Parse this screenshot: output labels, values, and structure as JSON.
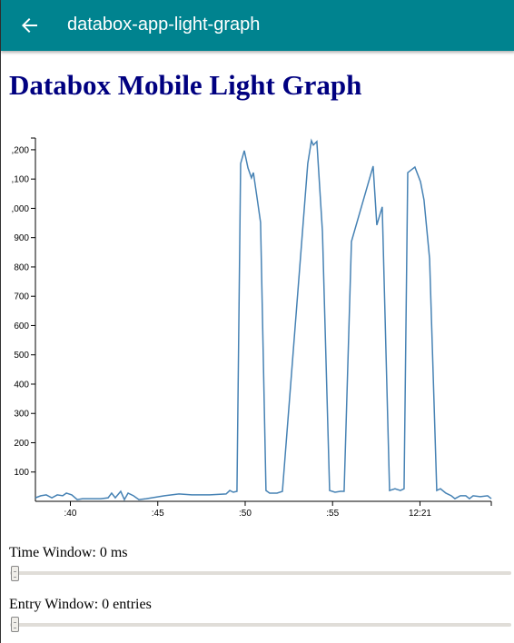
{
  "app_bar": {
    "title": "databox-app-light-graph"
  },
  "heading": "Databox Mobile Light Graph",
  "chart_data": {
    "type": "line",
    "x": [
      38.0,
      38.31,
      38.62,
      38.94,
      39.25,
      39.56,
      39.77,
      40.08,
      40.39,
      40.7,
      41.22,
      41.74,
      42.16,
      42.36,
      42.57,
      42.88,
      43.09,
      43.3,
      43.61,
      43.92,
      44.34,
      45.38,
      46.21,
      46.94,
      47.45,
      47.97,
      48.91,
      49.12,
      49.32,
      49.53,
      49.74,
      49.95,
      50.16,
      50.36,
      50.47,
      50.68,
      50.88,
      51.19,
      51.4,
      51.82,
      52.13,
      53.58,
      53.79,
      53.9,
      54.1,
      54.42,
      54.83,
      55.14,
      55.45,
      55.66,
      56.08,
      57.32,
      57.53,
      57.84,
      58.26,
      58.57,
      58.88,
      59.09,
      59.3,
      59.71,
      60.03,
      60.23,
      60.55,
      60.96,
      61.17,
      61.48,
      61.79,
      62.0,
      62.31,
      62.62,
      62.83,
      63.04,
      63.45,
      63.87,
      64.08
    ],
    "series": [
      {
        "color": "#4682b4",
        "values": [
          12,
          19,
          22,
          12,
          22,
          19,
          28,
          22,
          6,
          9,
          9,
          9,
          12,
          28,
          12,
          34,
          6,
          28,
          19,
          6,
          9,
          19,
          25,
          22,
          22,
          22,
          25,
          37,
          31,
          34,
          1153,
          1197,
          1138,
          1104,
          1122,
          1036,
          952,
          37,
          28,
          28,
          34,
          1153,
          1231,
          1216,
          1228,
          921,
          37,
          31,
          34,
          34,
          887,
          1144,
          943,
          1005,
          37,
          43,
          37,
          43,
          1122,
          1141,
          1091,
          1029,
          828,
          37,
          43,
          28,
          19,
          9,
          19,
          19,
          9,
          19,
          16,
          19,
          9
        ]
      }
    ],
    "xlim": [
      38,
      64.08
    ],
    "xticks": [
      {
        "value": 40,
        "label": ":40"
      },
      {
        "value": 45,
        "label": ":45"
      },
      {
        "value": 50,
        "label": ":50"
      },
      {
        "value": 55,
        "label": ":55"
      },
      {
        "value": 60,
        "label": "12:21"
      }
    ],
    "ylim": [
      0,
      1240
    ],
    "yticks": [
      100,
      200,
      300,
      400,
      500,
      600,
      700,
      800,
      900,
      {
        "value": 1000,
        "label": ",000"
      },
      {
        "value": 1100,
        "label": ",100"
      },
      {
        "value": 1200,
        "label": ",200"
      }
    ]
  },
  "controls": [
    {
      "label": "Time Window: 0 ms"
    },
    {
      "label": "Entry Window: 0 entries"
    }
  ]
}
